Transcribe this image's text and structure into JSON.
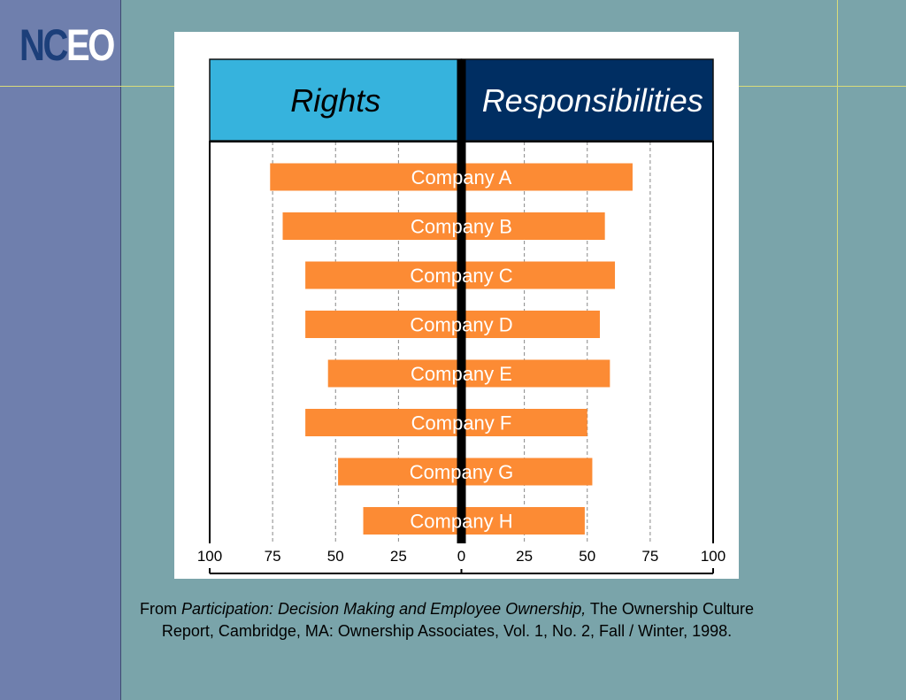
{
  "logo": {
    "part1": "NC",
    "part2": "EO"
  },
  "colors": {
    "rights_header": "#36b3dd",
    "responsibilities_header": "#002e62",
    "bar": "#fc8b34",
    "bar_label": "#ffffff"
  },
  "chart_data": {
    "type": "bar",
    "orientation": "horizontal-diverging",
    "left_header": "Rights",
    "right_header": "Responsibilities",
    "categories": [
      "Company A",
      "Company B",
      "Company C",
      "Company D",
      "Company E",
      "Company F",
      "Company G",
      "Company H"
    ],
    "series": [
      {
        "name": "Rights",
        "side": "left",
        "values": [
          76,
          71,
          62,
          62,
          53,
          62,
          49,
          39
        ]
      },
      {
        "name": "Responsibilities",
        "side": "right",
        "values": [
          68,
          57,
          61,
          55,
          59,
          50,
          52,
          49
        ]
      }
    ],
    "x_ticks": [
      "100",
      "75",
      "50",
      "25",
      "0",
      "25",
      "50",
      "75",
      "100"
    ],
    "xlim": [
      -100,
      100
    ],
    "grid": "vertical dashed"
  },
  "caption": {
    "prefix": "From ",
    "title": "Participation: Decision Making and Employee Ownership,",
    "rest": " The Ownership Culture Report, Cambridge, MA: Ownership Associates, Vol. 1, No. 2, Fall / Winter, 1998."
  }
}
